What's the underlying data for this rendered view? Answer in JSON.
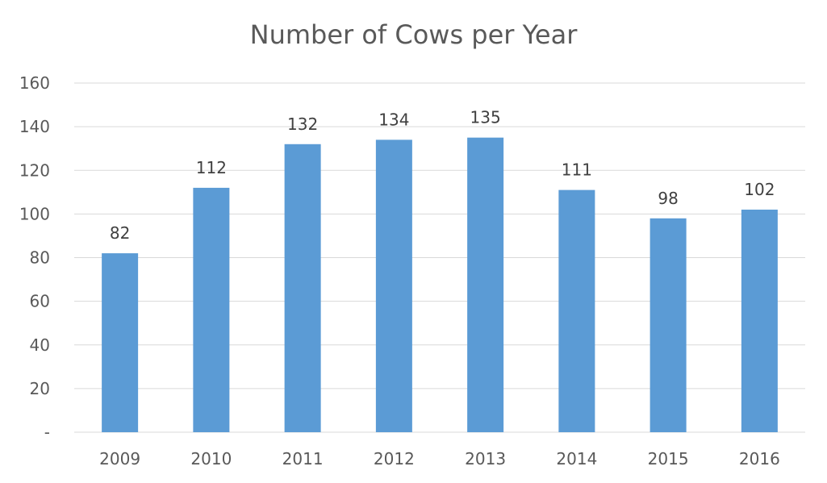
{
  "chart_data": {
    "type": "bar",
    "title": "Number of Cows per Year",
    "xlabel": "",
    "ylabel": "",
    "categories": [
      "2009",
      "2010",
      "2011",
      "2012",
      "2013",
      "2014",
      "2015",
      "2016"
    ],
    "values": [
      82,
      112,
      132,
      134,
      135,
      111,
      98,
      102
    ],
    "value_labels": [
      "82",
      "112",
      "132",
      "134",
      "135",
      "111",
      "98",
      "102"
    ],
    "ylim": [
      0,
      160
    ],
    "yticks": [
      0,
      20,
      40,
      60,
      80,
      100,
      120,
      140,
      160
    ],
    "ytick_labels": [
      "-",
      "20",
      "40",
      "60",
      "80",
      "100",
      "120",
      "140",
      "160"
    ],
    "grid": true,
    "legend": "none",
    "bar_color": "#5b9bd5"
  }
}
